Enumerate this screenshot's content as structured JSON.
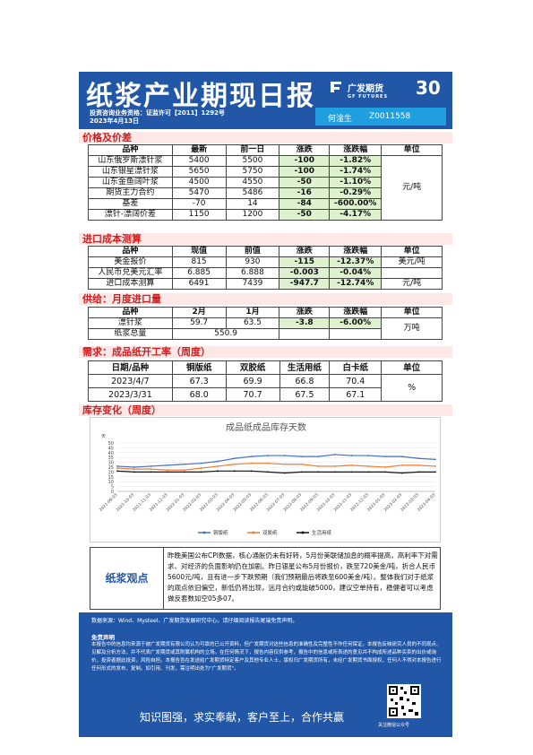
{
  "header": {
    "title": "纸浆产业期现日报",
    "qual": "投资咨询业务资格：证监许可【2011】1292号",
    "date": "2023年4月13日",
    "logo_cn": "广发期货",
    "logo_en": "GF FUTURES",
    "anniv": "30",
    "analyst_name": "何淦生",
    "analyst_id": "Z0011558"
  },
  "sections": {
    "price": "价格及价差",
    "cost": "进口成本测算",
    "supply": "供给：月度进口量",
    "demand": "需求：成品纸开工率（周度）",
    "inventory": "库存变化（周度）"
  },
  "price_table": {
    "headers": [
      "品种",
      "最新",
      "前一日",
      "涨跌",
      "涨跌幅",
      "单位"
    ],
    "rows": [
      [
        "山东俄罗斯漂针浆",
        "5400",
        "5500",
        "-100",
        "-1.82%"
      ],
      [
        "山东银星漂针浆",
        "5650",
        "5750",
        "-100",
        "-1.74%"
      ],
      [
        "山东金鱼阔叶浆",
        "4500",
        "4550",
        "-50",
        "-1.10%"
      ],
      [
        "期货主力合约",
        "5470",
        "5486",
        "-16",
        "-0.29%"
      ],
      [
        "基差",
        "-70",
        "14",
        "-84",
        "-600.00%"
      ],
      [
        "漂针-漂阔价差",
        "1150",
        "1200",
        "-50",
        "-4.17%"
      ]
    ],
    "unit": "元/吨"
  },
  "cost_table": {
    "headers": [
      "品种",
      "现值",
      "前值",
      "涨跌",
      "涨跌幅",
      "单位"
    ],
    "rows": [
      [
        "美金报价",
        "815",
        "930",
        "-115",
        "-12.37%",
        "美元/吨"
      ],
      [
        "人民币兑美元汇率",
        "6.885",
        "6.888",
        "-0.003",
        "-0.04%",
        ""
      ],
      [
        "进口成本测算",
        "6491",
        "7439",
        "-947.7",
        "-12.74%",
        "元/吨"
      ]
    ]
  },
  "supply_table": {
    "headers": [
      "品种",
      "2月",
      "1月",
      "涨跌",
      "涨跌幅",
      "单位"
    ],
    "row1": [
      "漂针浆",
      "59.7",
      "63.5",
      "-3.8",
      "-6.00%"
    ],
    "row2_label": "纸浆总量",
    "row2_value": "550.9",
    "unit": "万吨"
  },
  "demand_table": {
    "headers": [
      "日期/品种",
      "铜版纸",
      "双胶纸",
      "生活用纸",
      "白卡纸",
      "单位"
    ],
    "rows": [
      [
        "2023/4/7",
        "67.3",
        "69.9",
        "66.8",
        "70.4"
      ],
      [
        "2023/3/31",
        "68.0",
        "70.7",
        "67.5",
        "67.1"
      ]
    ],
    "unit": "%"
  },
  "chart_data": {
    "type": "line",
    "title": "成品纸成品库存天数",
    "ylabel": "天",
    "ylim": [
      0,
      50
    ],
    "yticks": [
      "0",
      "5",
      "10",
      "15",
      "20",
      "25",
      "30",
      "35",
      "40",
      "45",
      "50"
    ],
    "categories": [
      "2021-09-03",
      "2021-10-03",
      "2021-11-03",
      "2021-12-03",
      "2022-01-03",
      "2022-02-03",
      "2022-03-03",
      "2022-04-03",
      "2022-05-03",
      "2022-06-03",
      "2022-07-03",
      "2022-08-03",
      "2022-09-03",
      "2022-10-03",
      "2022-11-03",
      "2022-12-03",
      "2023-01-03",
      "2023-02-03",
      "2023-03-03",
      "2023-04-03"
    ],
    "series": [
      {
        "name": "铜版纸",
        "color": "#4472c4",
        "values": [
          26,
          25,
          26,
          27,
          28,
          29,
          31,
          34,
          36,
          37,
          37,
          36,
          36,
          38,
          37,
          37,
          36,
          36,
          34,
          33
        ]
      },
      {
        "name": "双胶纸",
        "color": "#ed7d31",
        "values": [
          24,
          23,
          23,
          22,
          22,
          24,
          26,
          28,
          29,
          29,
          28,
          28,
          26,
          26,
          27,
          26,
          25,
          27,
          27,
          26
        ]
      },
      {
        "name": "生活用纸",
        "color": "#111111",
        "values": [
          21,
          20,
          20,
          20,
          20,
          20,
          21,
          21,
          21,
          20,
          19,
          20,
          20,
          20,
          20,
          20,
          20,
          19,
          20,
          20
        ]
      }
    ]
  },
  "view": {
    "label": "纸浆观点",
    "text": "昨晚美国公布CPI数据，核心通胀仍未有好转，5月份美联储加息的概率提高，高利率下对需求、对经济的负面影响仍在加剧。昨日银星公布5月份报价，跌至720美金/吨，折合人民币5600元/吨，且有进一步下跌预期（我们预期最后将跌至600美金/吨）。整体我们对于纸浆的观点依旧偏空，新低仍将出现，远月合约或能破5000，建议空单持有，稳健者可以考虑做反套数如空05多07。"
  },
  "footer": {
    "source": "数据来源：Wind、Mysteel、广发期货发展研究中心。请仔细阅读报告尾端免责声明。",
    "disclaimer_title": "免责声明",
    "disclaimer": "本报告中的信息均来源于被广发期货有限公司认为可靠的已公开资料，但广发期货对这些信息的准确性及完整性不作任何保证。本报告反映研究人员的不同观点、见解及分析方法，并不代表广发期货或其附属机构的立场。在任何情况下，报告内容仅供参考，报告中的信息或所表述的意见并不构成所述品种买卖的出价或询价，投资者据此投资，风险自担。本报告旨在发送给广发期货特定客户及其他专业人士，版权归广发期货所有，未经广发期货书面授权，任何人不得对本报告进行任何形式的发布、复制。如引用、刊发，需注明出处为\"广发期货\"。",
    "slogan": "知识图强，求实奉献，客户至上，合作共赢",
    "qr_caption": "关注微信公众号"
  }
}
